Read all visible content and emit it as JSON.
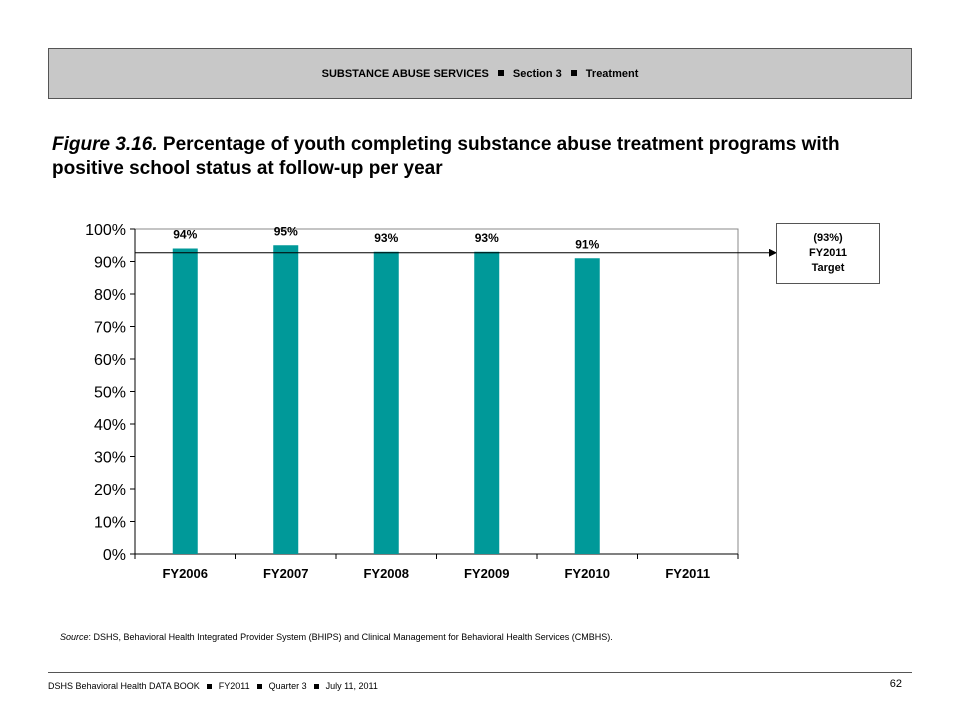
{
  "header": {
    "part1": "SUBSTANCE ABUSE SERVICES",
    "part2": "Section 3",
    "part3": "Treatment"
  },
  "figure": {
    "label": "Figure 3.16.",
    "text": "Percentage of youth completing substance abuse treatment programs with positive school status at follow-up per year"
  },
  "target_box": {
    "line1": "(93%)",
    "line2": "FY2011",
    "line3": "Target"
  },
  "source": {
    "label": "Source",
    "text": ": DSHS, Behavioral Health Integrated Provider System (BHIPS) and Clinical Management for Behavioral Health Services (CMBHS)."
  },
  "footer": {
    "part1": "DSHS Behavioral Health DATA BOOK",
    "part2": "FY2011",
    "part3": "Quarter 3",
    "part4": "July 11, 2011",
    "page_number": "62"
  },
  "chart_data": {
    "type": "bar",
    "categories": [
      "FY2006",
      "FY2007",
      "FY2008",
      "FY2009",
      "FY2010",
      "FY2011"
    ],
    "values": [
      94,
      95,
      93,
      93,
      91,
      null
    ],
    "data_labels": [
      "94%",
      "95%",
      "93%",
      "93%",
      "91%",
      ""
    ],
    "ylim": [
      0,
      100
    ],
    "yticks": [
      0,
      10,
      20,
      30,
      40,
      50,
      60,
      70,
      80,
      90,
      100
    ],
    "ytick_labels": [
      "0%",
      "10%",
      "20%",
      "30%",
      "40%",
      "50%",
      "60%",
      "70%",
      "80%",
      "90%",
      "100%"
    ],
    "target_value": 93,
    "bar_color": "#009999",
    "grid": false,
    "legend": "none"
  }
}
